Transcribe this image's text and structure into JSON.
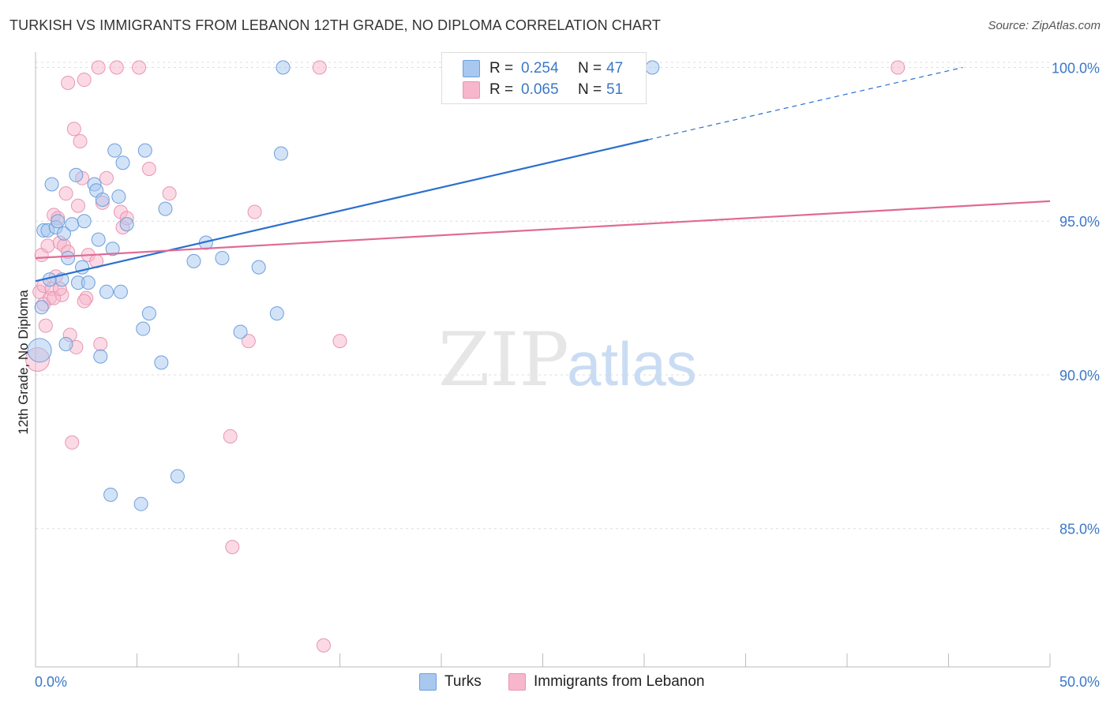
{
  "title": "TURKISH VS IMMIGRANTS FROM LEBANON 12TH GRADE, NO DIPLOMA CORRELATION CHART",
  "source": "Source: ZipAtlas.com",
  "watermark": {
    "zip": "ZIP",
    "atlas": "atlas"
  },
  "legend": {
    "r_label": "R =",
    "n_label": "N =",
    "series": [
      {
        "name": "Turks",
        "r": "0.254",
        "n": "47"
      },
      {
        "name": "Immigrants from Lebanon",
        "r": "0.065",
        "n": "51"
      }
    ]
  },
  "colors": {
    "turks_fill": "#a8c8f0",
    "turks_stroke": "#6d9fdc",
    "turks_line": "#2a6fcf",
    "lebanon_fill": "#f7b6cb",
    "lebanon_stroke": "#e896b2",
    "lebanon_line": "#e06a94",
    "tick_label": "#3b78c7",
    "grid": "#dddddd"
  },
  "chart_data": {
    "type": "scatter",
    "title": "TURKISH VS IMMIGRANTS FROM LEBANON 12TH GRADE, NO DIPLOMA CORRELATION CHART",
    "xlabel": "",
    "ylabel": "12th Grade, No Diploma",
    "xlim": [
      0,
      50
    ],
    "ylim": [
      80.5,
      100.5
    ],
    "x_tick_labels": [
      "0.0%",
      "50.0%"
    ],
    "y_ticks": [
      85,
      90,
      95,
      100
    ],
    "y_tick_labels": [
      "85.0%",
      "90.0%",
      "95.0%",
      "100.0%"
    ],
    "series": [
      {
        "name": "Turks",
        "trend": {
          "x0": 0,
          "y0": 93.05,
          "x1": 30.2,
          "y1": 97.65,
          "dash_x1": 45.7,
          "dash_y1": 100.0
        },
        "points": [
          [
            0.2,
            90.8
          ],
          [
            0.3,
            92.2
          ],
          [
            0.4,
            94.7
          ],
          [
            0.6,
            94.7
          ],
          [
            0.7,
            93.1
          ],
          [
            0.8,
            96.2
          ],
          [
            1.0,
            94.8
          ],
          [
            1.1,
            95.0
          ],
          [
            1.3,
            93.1
          ],
          [
            1.4,
            94.6
          ],
          [
            1.5,
            91.0
          ],
          [
            1.6,
            93.8
          ],
          [
            1.8,
            94.9
          ],
          [
            2.0,
            96.5
          ],
          [
            2.1,
            93.0
          ],
          [
            2.3,
            93.5
          ],
          [
            2.4,
            95.0
          ],
          [
            2.6,
            93.0
          ],
          [
            2.9,
            96.2
          ],
          [
            3.0,
            96.0
          ],
          [
            3.1,
            94.4
          ],
          [
            3.2,
            90.6
          ],
          [
            3.3,
            95.7
          ],
          [
            3.5,
            92.7
          ],
          [
            3.7,
            86.1
          ],
          [
            3.8,
            94.1
          ],
          [
            3.9,
            97.3
          ],
          [
            4.1,
            95.8
          ],
          [
            4.2,
            92.7
          ],
          [
            4.3,
            96.9
          ],
          [
            4.5,
            94.9
          ],
          [
            5.2,
            85.8
          ],
          [
            5.3,
            91.5
          ],
          [
            5.4,
            97.3
          ],
          [
            5.6,
            92.0
          ],
          [
            6.2,
            90.4
          ],
          [
            6.4,
            95.4
          ],
          [
            7.0,
            86.7
          ],
          [
            7.8,
            93.7
          ],
          [
            8.4,
            94.3
          ],
          [
            9.2,
            93.8
          ],
          [
            10.1,
            91.4
          ],
          [
            11.0,
            93.5
          ],
          [
            11.9,
            92.0
          ],
          [
            12.1,
            97.2
          ],
          [
            12.2,
            100.0
          ],
          [
            30.4,
            100.0
          ]
        ]
      },
      {
        "name": "Immigrants from Lebanon",
        "trend": {
          "x0": 0,
          "y0": 93.8,
          "x1": 50,
          "y1": 95.65
        },
        "points": [
          [
            0.1,
            90.5
          ],
          [
            0.2,
            92.7
          ],
          [
            0.3,
            93.9
          ],
          [
            0.4,
            92.9
          ],
          [
            0.5,
            91.6
          ],
          [
            0.6,
            94.2
          ],
          [
            0.7,
            92.5
          ],
          [
            0.8,
            92.8
          ],
          [
            0.9,
            95.2
          ],
          [
            1.0,
            93.2
          ],
          [
            1.1,
            95.1
          ],
          [
            1.2,
            94.3
          ],
          [
            1.3,
            92.6
          ],
          [
            1.4,
            94.2
          ],
          [
            1.5,
            95.9
          ],
          [
            1.6,
            99.5
          ],
          [
            1.7,
            91.3
          ],
          [
            1.8,
            87.8
          ],
          [
            1.9,
            98.0
          ],
          [
            2.0,
            90.9
          ],
          [
            2.1,
            95.5
          ],
          [
            2.2,
            97.6
          ],
          [
            2.3,
            96.4
          ],
          [
            2.4,
            99.6
          ],
          [
            2.5,
            92.5
          ],
          [
            2.6,
            93.9
          ],
          [
            3.1,
            100.0
          ],
          [
            3.0,
            93.7
          ],
          [
            3.2,
            91.0
          ],
          [
            3.3,
            95.6
          ],
          [
            3.5,
            96.4
          ],
          [
            4.0,
            100.0
          ],
          [
            4.2,
            95.3
          ],
          [
            4.3,
            94.8
          ],
          [
            4.5,
            95.1
          ],
          [
            5.1,
            100.0
          ],
          [
            5.6,
            96.7
          ],
          [
            6.6,
            95.9
          ],
          [
            9.6,
            88.0
          ],
          [
            9.7,
            84.4
          ],
          [
            10.5,
            91.1
          ],
          [
            10.8,
            95.3
          ],
          [
            14.0,
            100.0
          ],
          [
            14.2,
            81.2
          ],
          [
            15.0,
            91.1
          ],
          [
            42.5,
            100.0
          ],
          [
            0.4,
            92.3
          ],
          [
            0.9,
            92.5
          ],
          [
            1.6,
            94.0
          ],
          [
            2.4,
            92.4
          ],
          [
            1.2,
            92.8
          ]
        ]
      }
    ]
  }
}
